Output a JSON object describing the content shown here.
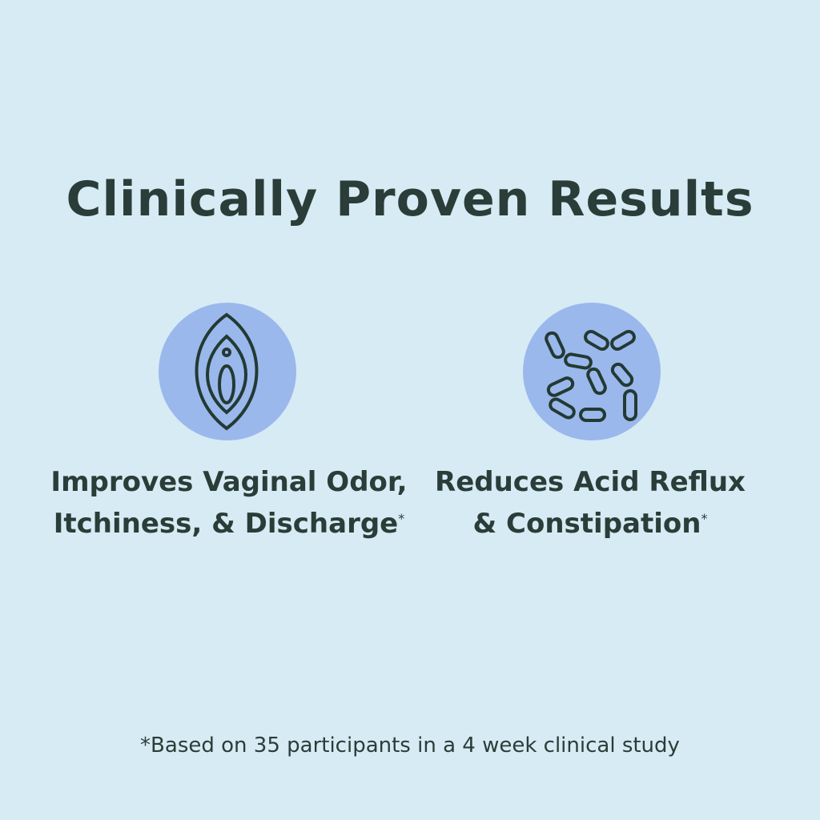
{
  "title": "Clinically Proven Results",
  "colors": {
    "background": "#d6ebf4",
    "circle": "#9ab8ec",
    "text": "#2a3d38"
  },
  "benefits": [
    {
      "icon": "vulva-icon",
      "line1": "Improves Vaginal Odor,",
      "line2": "Itchiness, & Discharge",
      "mark": "*"
    },
    {
      "icon": "bacteria-icon",
      "line1": "Reduces Acid Reflux",
      "line2": "& Constipation",
      "mark": "*"
    }
  ],
  "footnote": "*Based on 35 participants in a 4 week clinical study"
}
